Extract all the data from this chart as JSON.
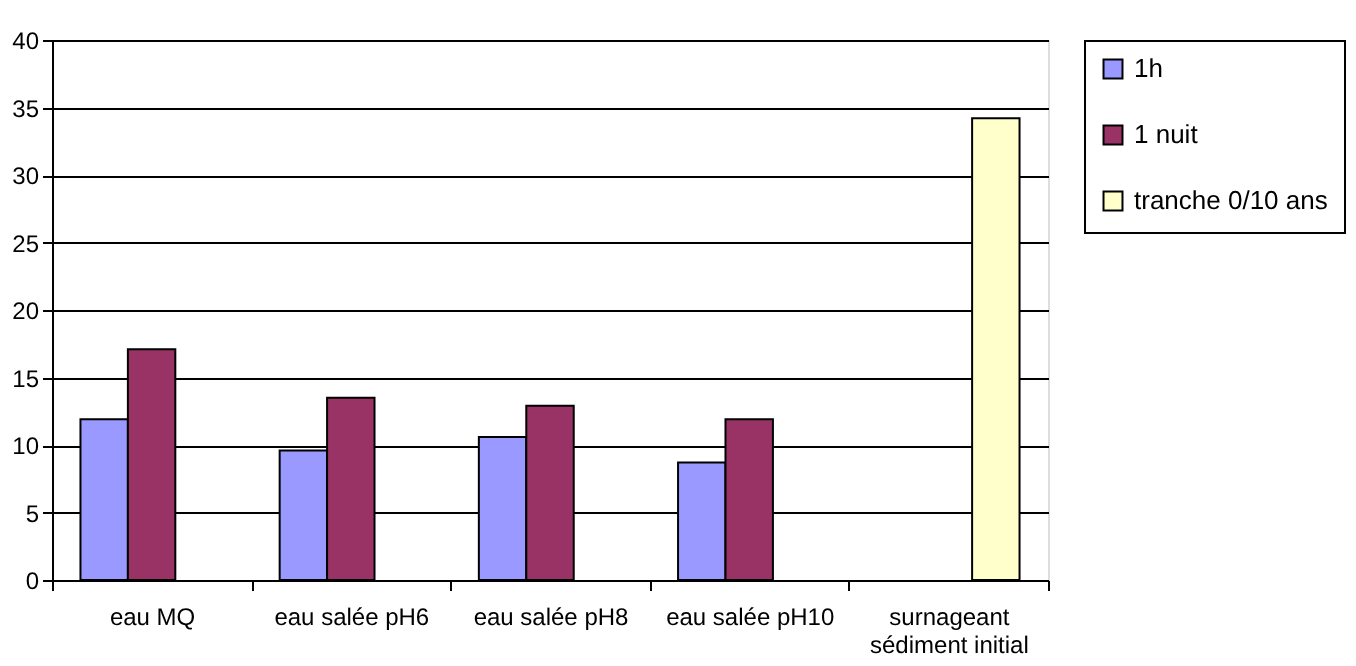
{
  "chart_data": {
    "type": "bar",
    "categories": [
      "eau MQ",
      "eau salée pH6",
      "eau salée pH8",
      "eau salée pH10",
      "surnageant sédiment initial"
    ],
    "series": [
      {
        "name": "1h",
        "color": "#9999ff",
        "values": [
          11.9,
          9.6,
          10.6,
          8.7,
          null
        ]
      },
      {
        "name": "1 nuit",
        "color": "#993366",
        "values": [
          17.1,
          13.5,
          12.9,
          11.9,
          null
        ]
      },
      {
        "name": "tranche 0/10 ans",
        "color": "#ffffcc",
        "values": [
          null,
          null,
          null,
          null,
          34.2
        ]
      }
    ],
    "ylim": [
      0,
      40
    ],
    "yticks": [
      0,
      5,
      10,
      15,
      20,
      25,
      30,
      35,
      40
    ],
    "grid": "y",
    "legend": "right"
  }
}
